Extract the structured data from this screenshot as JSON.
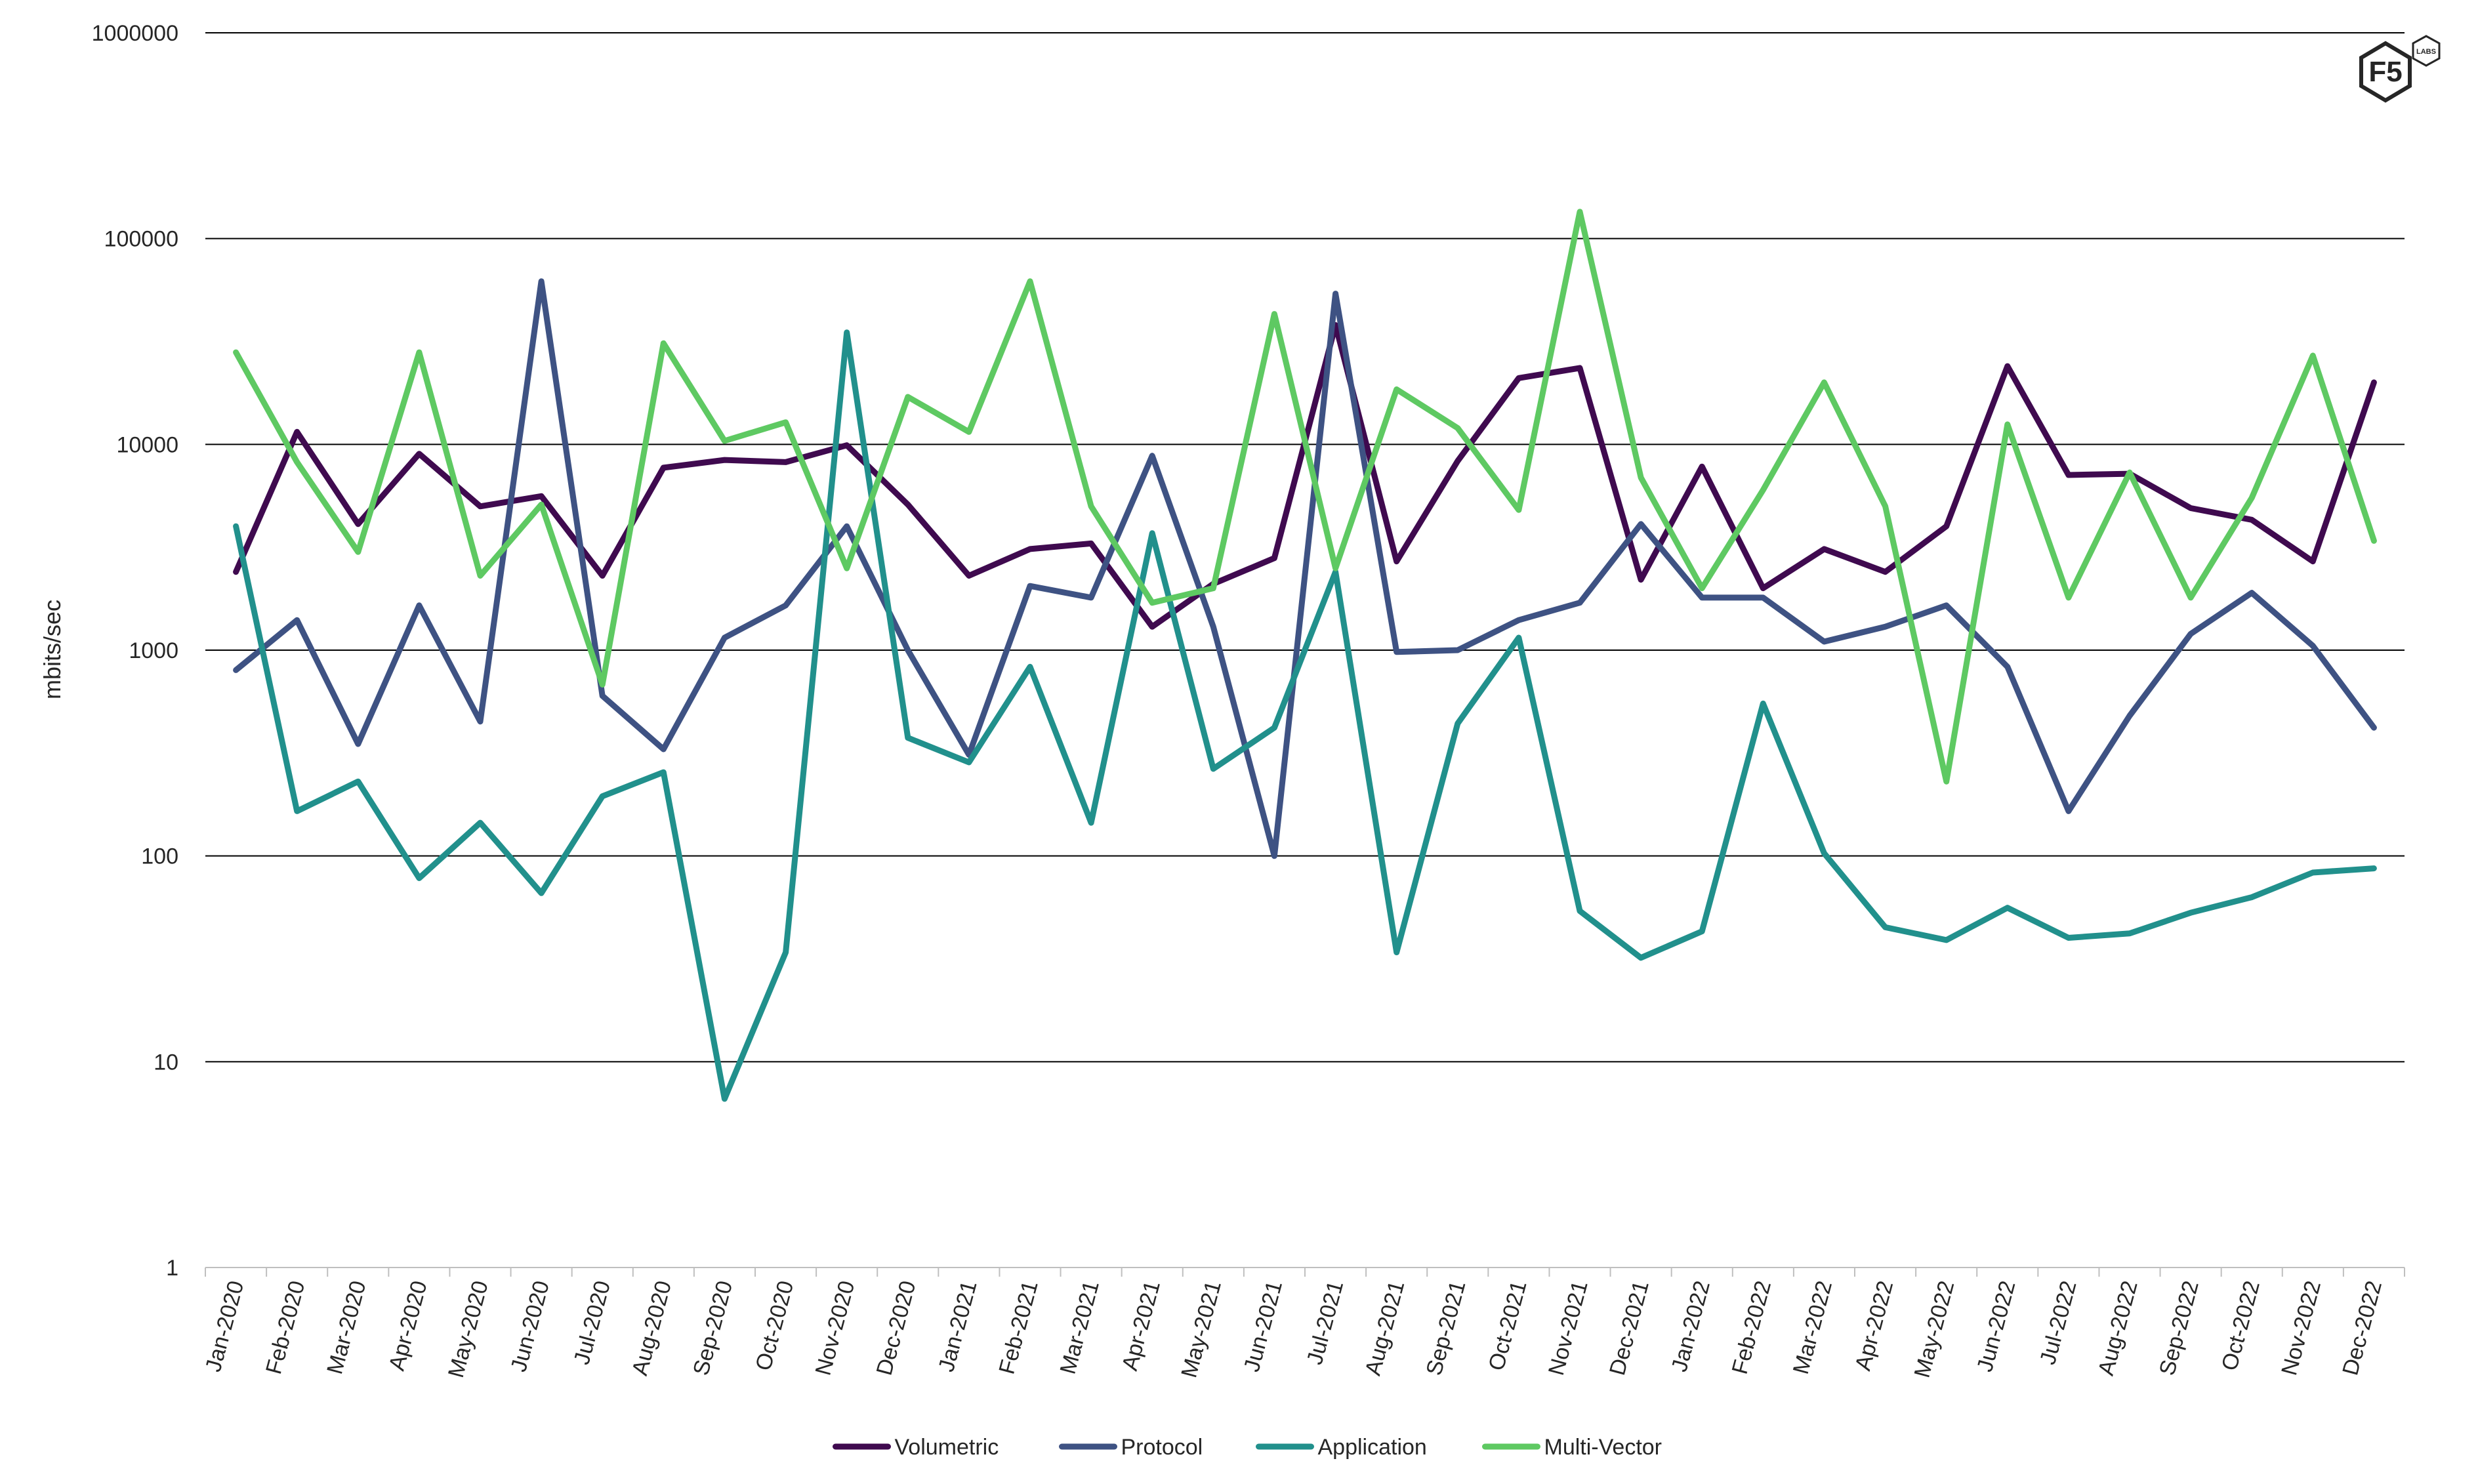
{
  "chart_data": {
    "type": "line",
    "title": "",
    "xlabel": "",
    "ylabel": "mbits/sec",
    "yscale": "log",
    "ylim": [
      1,
      1000000
    ],
    "yticks": [
      "1",
      "10",
      "100",
      "1000",
      "10000",
      "100000",
      "1000000"
    ],
    "grid": true,
    "legend_position": "bottom-center",
    "categories": [
      "Jan-2020",
      "Feb-2020",
      "Mar-2020",
      "Apr-2020",
      "May-2020",
      "Jun-2020",
      "Jul-2020",
      "Aug-2020",
      "Sep-2020",
      "Oct-2020",
      "Nov-2020",
      "Dec-2020",
      "Jan-2021",
      "Feb-2021",
      "Mar-2021",
      "Apr-2021",
      "May-2021",
      "Jun-2021",
      "Jul-2021",
      "Aug-2021",
      "Sep-2021",
      "Oct-2021",
      "Nov-2021",
      "Dec-2021",
      "Jan-2022",
      "Feb-2022",
      "Mar-2022",
      "Apr-2022",
      "May-2022",
      "Jun-2022",
      "Jul-2022",
      "Aug-2022",
      "Sep-2022",
      "Oct-2022",
      "Nov-2022",
      "Dec-2022"
    ],
    "series": [
      {
        "name": "Volumetric",
        "color": "#3f0a4f",
        "values": [
          2400,
          11500,
          4100,
          9000,
          5000,
          5600,
          2300,
          7700,
          8400,
          8200,
          9900,
          5100,
          2300,
          3100,
          3300,
          1300,
          2100,
          2800,
          38000,
          2700,
          8300,
          21000,
          23500,
          2200,
          7800,
          2000,
          3100,
          2400,
          4000,
          24000,
          7100,
          7200,
          4900,
          4300,
          2700,
          20000
        ]
      },
      {
        "name": "Protocol",
        "color": "#3e5283",
        "values": [
          800,
          1400,
          350,
          1650,
          450,
          62000,
          600,
          330,
          1150,
          1650,
          4000,
          1000,
          310,
          2050,
          1800,
          8800,
          1300,
          100,
          54000,
          980,
          1000,
          1400,
          1700,
          4100,
          1800,
          1800,
          1100,
          1300,
          1650,
          830,
          165,
          480,
          1200,
          1900,
          1050,
          420
        ]
      },
      {
        "name": "Application",
        "color": "#21908c",
        "values": [
          4000,
          165,
          230,
          78,
          145,
          66,
          195,
          255,
          6.6,
          34,
          35000,
          375,
          285,
          830,
          145,
          3700,
          265,
          420,
          2400,
          34,
          440,
          1150,
          54,
          32,
          43,
          550,
          103,
          45,
          39,
          56,
          40,
          42,
          53,
          63,
          83,
          87
        ]
      },
      {
        "name": "Multi-Vector",
        "color": "#5ec962",
        "values": [
          28000,
          8200,
          3000,
          28000,
          2300,
          5100,
          680,
          31000,
          10400,
          12800,
          2500,
          17000,
          11500,
          62000,
          5000,
          1700,
          2000,
          43000,
          2500,
          18500,
          12000,
          4800,
          135000,
          6900,
          2000,
          6000,
          20000,
          5000,
          230,
          12500,
          1800,
          7300,
          1800,
          5500,
          27000,
          3400
        ]
      }
    ]
  },
  "logo": {
    "main": "F5",
    "sub": "LABS"
  }
}
